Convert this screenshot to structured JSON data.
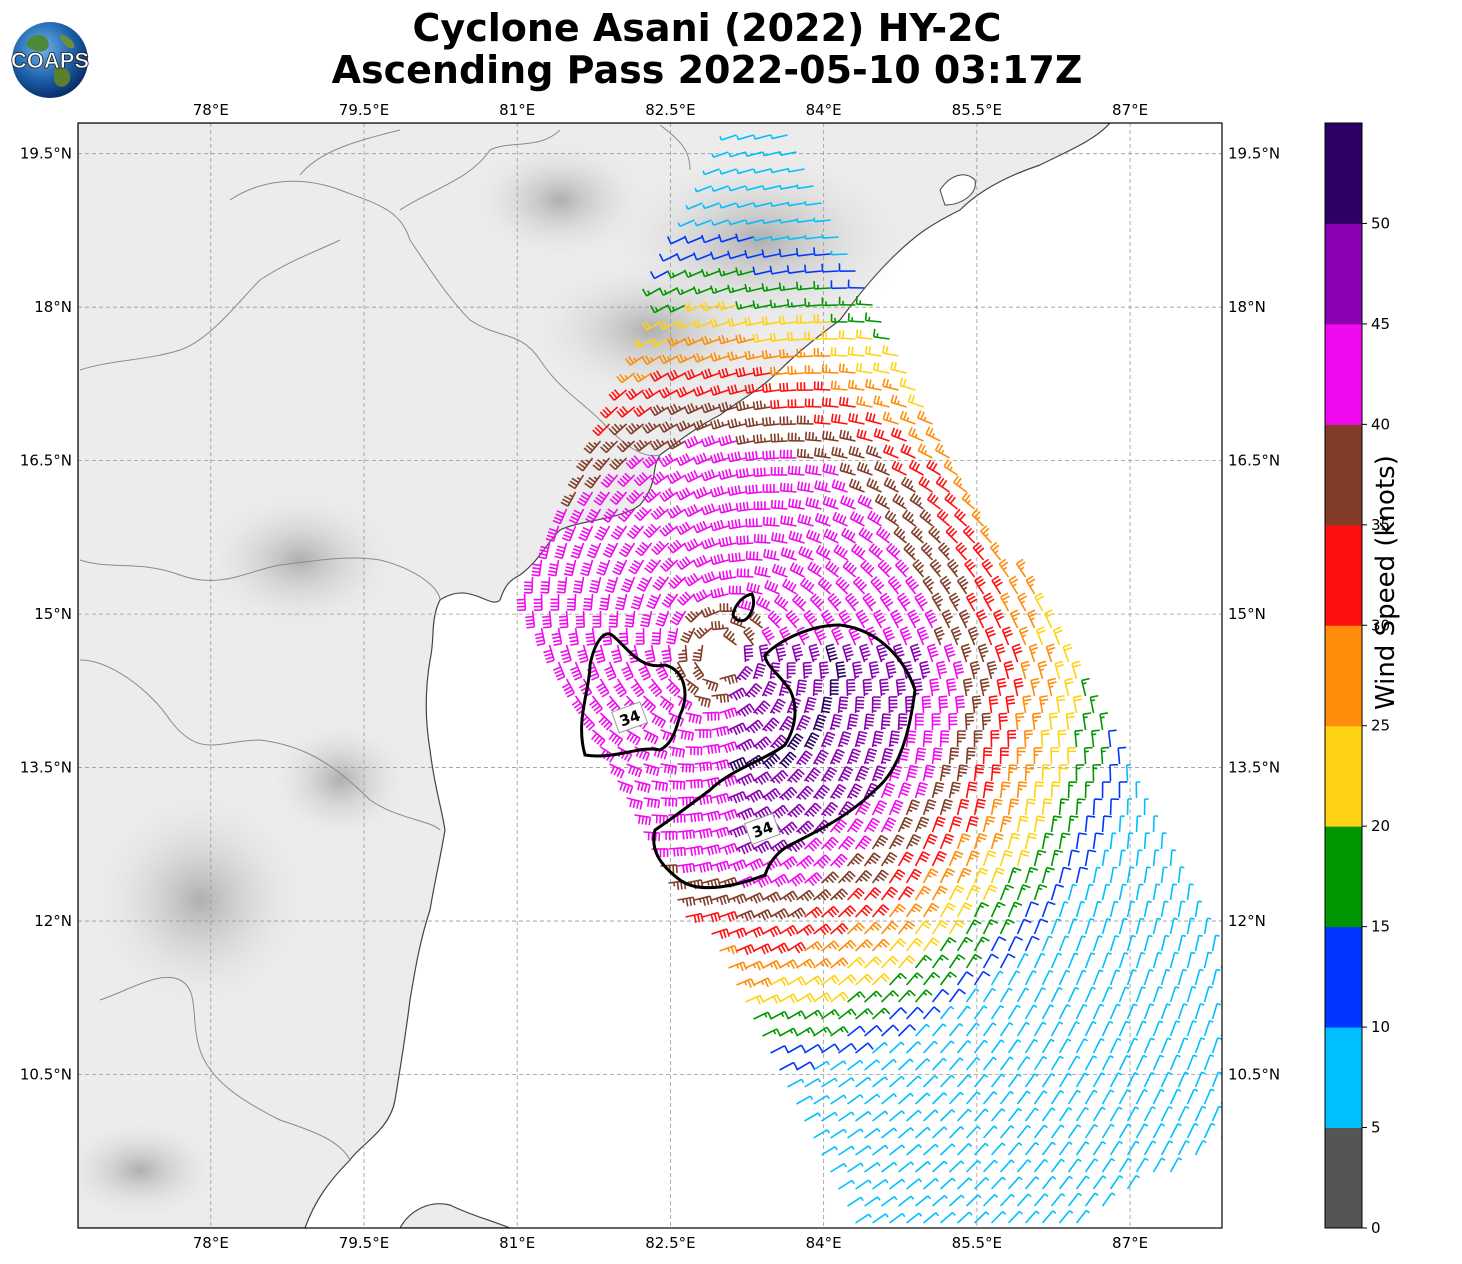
{
  "title": {
    "line1": "Cyclone Asani (2022) HY-2C",
    "line2": "Ascending Pass 2022-05-10 03:17Z"
  },
  "logo": {
    "text": "COAPS",
    "icon": "coaps-globe-logo"
  },
  "map": {
    "lon_range": [
      76.7,
      87.9
    ],
    "lat_range": [
      9.0,
      19.8
    ],
    "lon_ticks": [
      {
        "value": 78.0,
        "label": "78°E"
      },
      {
        "value": 79.5,
        "label": "79.5°E"
      },
      {
        "value": 81.0,
        "label": "81°E"
      },
      {
        "value": 82.5,
        "label": "82.5°E"
      },
      {
        "value": 84.0,
        "label": "84°E"
      },
      {
        "value": 85.5,
        "label": "85.5°E"
      },
      {
        "value": 87.0,
        "label": "87°E"
      }
    ],
    "lat_ticks": [
      {
        "value": 19.5,
        "label": "19.5°N"
      },
      {
        "value": 18.0,
        "label": "18°N"
      },
      {
        "value": 16.5,
        "label": "16.5°N"
      },
      {
        "value": 15.0,
        "label": "15°N"
      },
      {
        "value": 13.5,
        "label": "13.5°N"
      },
      {
        "value": 12.0,
        "label": "12°N"
      },
      {
        "value": 10.5,
        "label": "10.5°N"
      }
    ],
    "grid": true,
    "storm_center": {
      "lon": 83.0,
      "lat": 14.6
    },
    "wind_34kt_contour_label": "34",
    "wind_34kt_label_positions": [
      {
        "lon": 82.1,
        "lat": 13.99
      },
      {
        "lon": 83.4,
        "lat": 12.9
      }
    ]
  },
  "colorbar": {
    "label": "Wind Speed (knots)",
    "ticks": [
      "0",
      "5",
      "10",
      "15",
      "20",
      "25",
      "30",
      "35",
      "40",
      "45",
      "50"
    ],
    "colors": [
      "#555555",
      "#00bfff",
      "#0036ff",
      "#009600",
      "#ffd214",
      "#ff8c0a",
      "#ff1010",
      "#823c28",
      "#f00af0",
      "#8c00b4",
      "#2c0064"
    ],
    "range": [
      0,
      55
    ]
  }
}
